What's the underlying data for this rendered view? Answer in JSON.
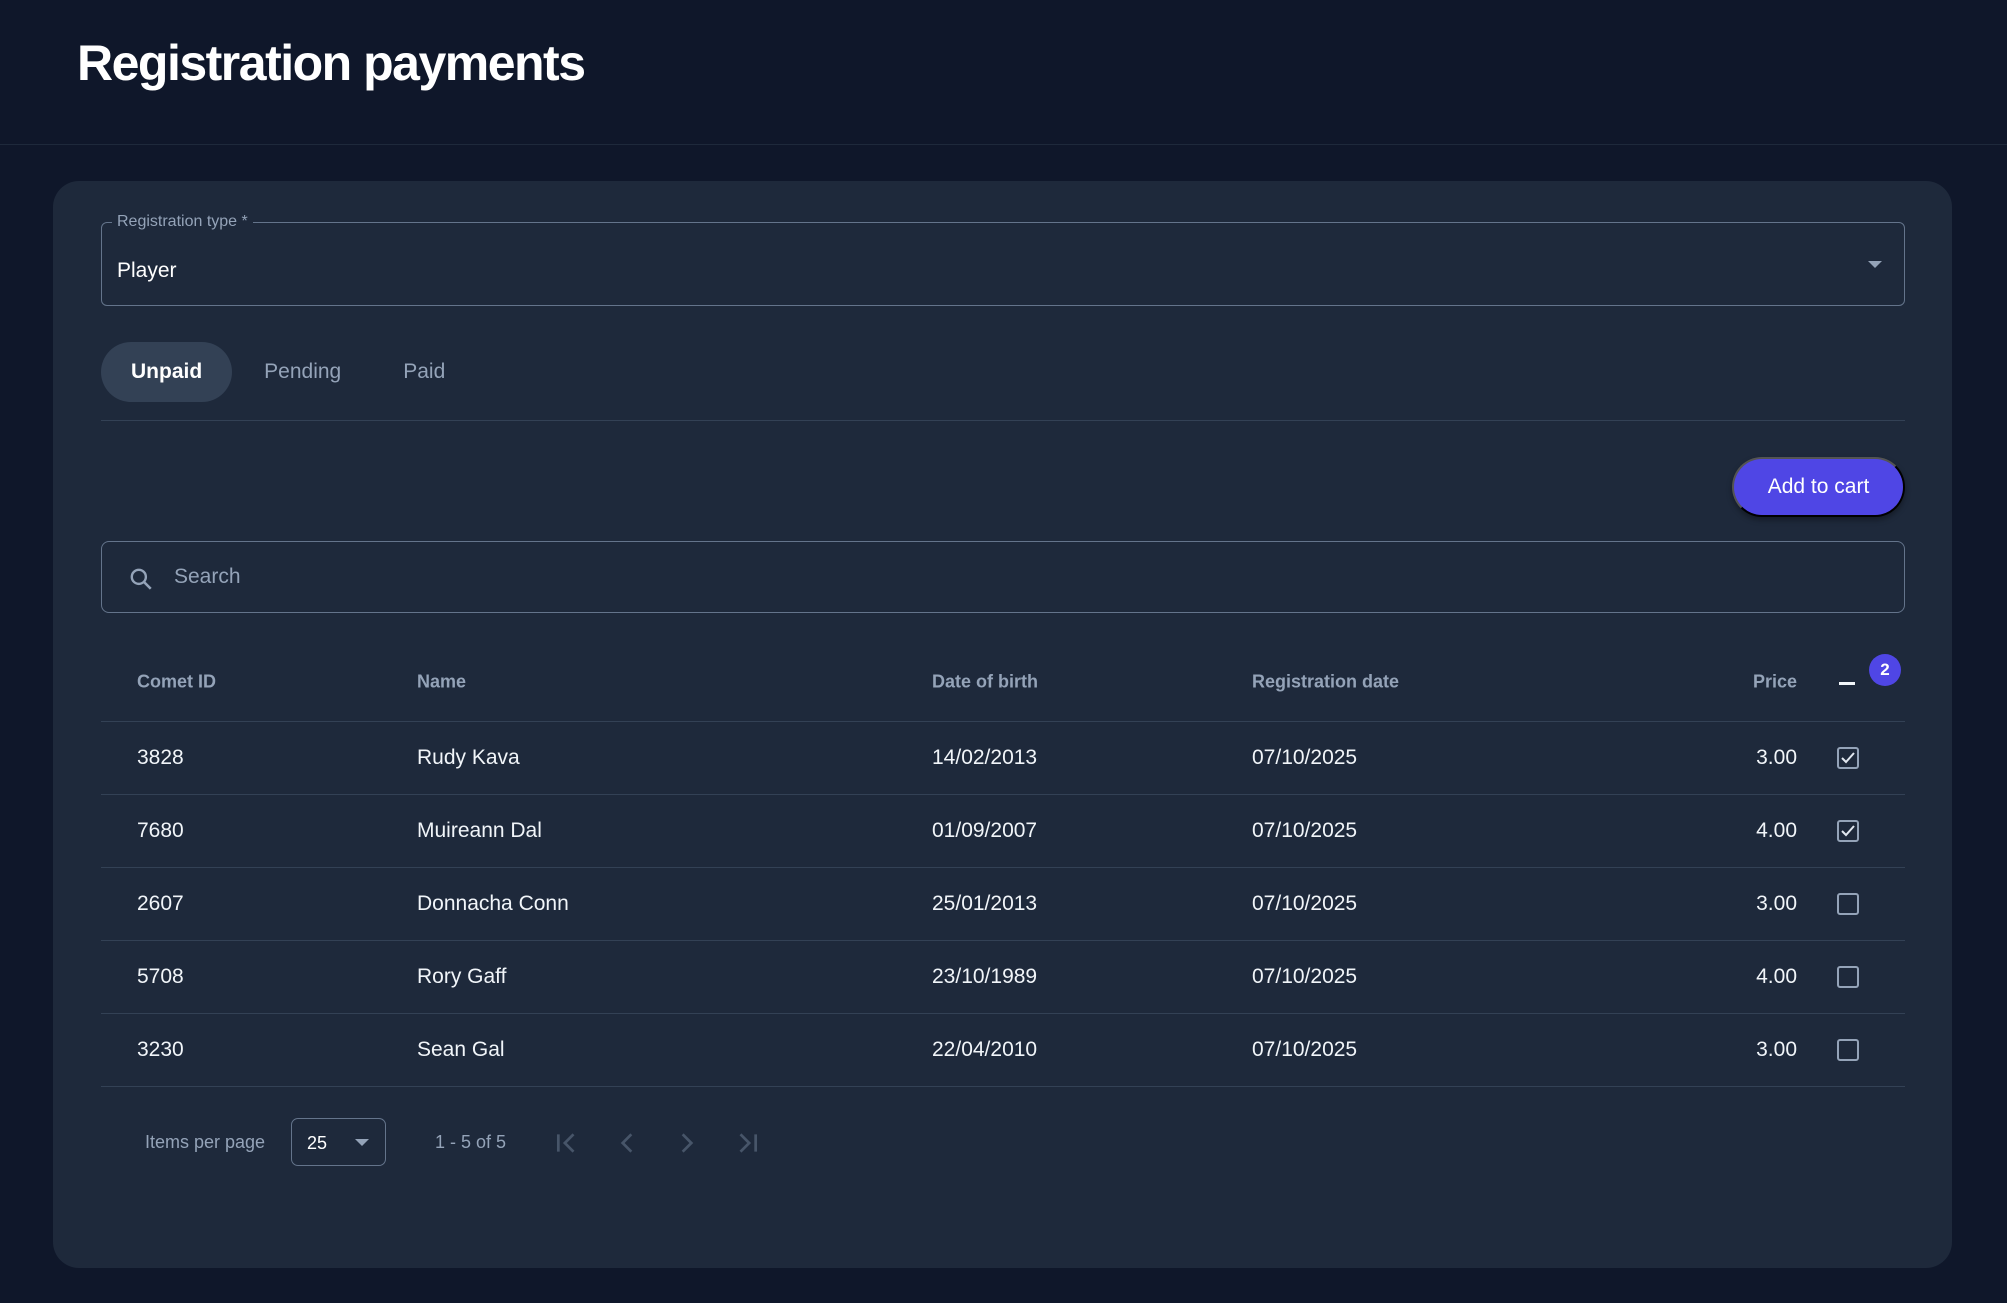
{
  "page": {
    "title": "Registration payments"
  },
  "filter": {
    "label": "Registration type *",
    "value": "Player"
  },
  "tabs": [
    {
      "label": "Unpaid",
      "active": true
    },
    {
      "label": "Pending",
      "active": false
    },
    {
      "label": "Paid",
      "active": false
    }
  ],
  "toolbar": {
    "add_to_cart": "Add to cart"
  },
  "search": {
    "placeholder": "Search",
    "value": ""
  },
  "table": {
    "headers": {
      "comet_id": "Comet ID",
      "name": "Name",
      "dob": "Date of birth",
      "reg_date": "Registration date",
      "price": "Price"
    },
    "selected_count": "2",
    "rows": [
      {
        "comet_id": "3828",
        "name": "Rudy Kava",
        "dob": "14/02/2013",
        "reg_date": "07/10/2025",
        "price": "3.00",
        "checked": true
      },
      {
        "comet_id": "7680",
        "name": "Muireann Dal",
        "dob": "01/09/2007",
        "reg_date": "07/10/2025",
        "price": "4.00",
        "checked": true
      },
      {
        "comet_id": "2607",
        "name": "Donnacha Conn",
        "dob": "25/01/2013",
        "reg_date": "07/10/2025",
        "price": "3.00",
        "checked": false
      },
      {
        "comet_id": "5708",
        "name": "Rory Gaff",
        "dob": "23/10/1989",
        "reg_date": "07/10/2025",
        "price": "4.00",
        "checked": false
      },
      {
        "comet_id": "3230",
        "name": "Sean Gal",
        "dob": "22/04/2010",
        "reg_date": "07/10/2025",
        "price": "3.00",
        "checked": false
      }
    ]
  },
  "pagination": {
    "items_per_page_label": "Items per page",
    "items_per_page": "25",
    "range": "1 - 5 of 5"
  },
  "colors": {
    "background": "#0f172a",
    "card": "#1e293b",
    "accent": "#4f46e5"
  }
}
